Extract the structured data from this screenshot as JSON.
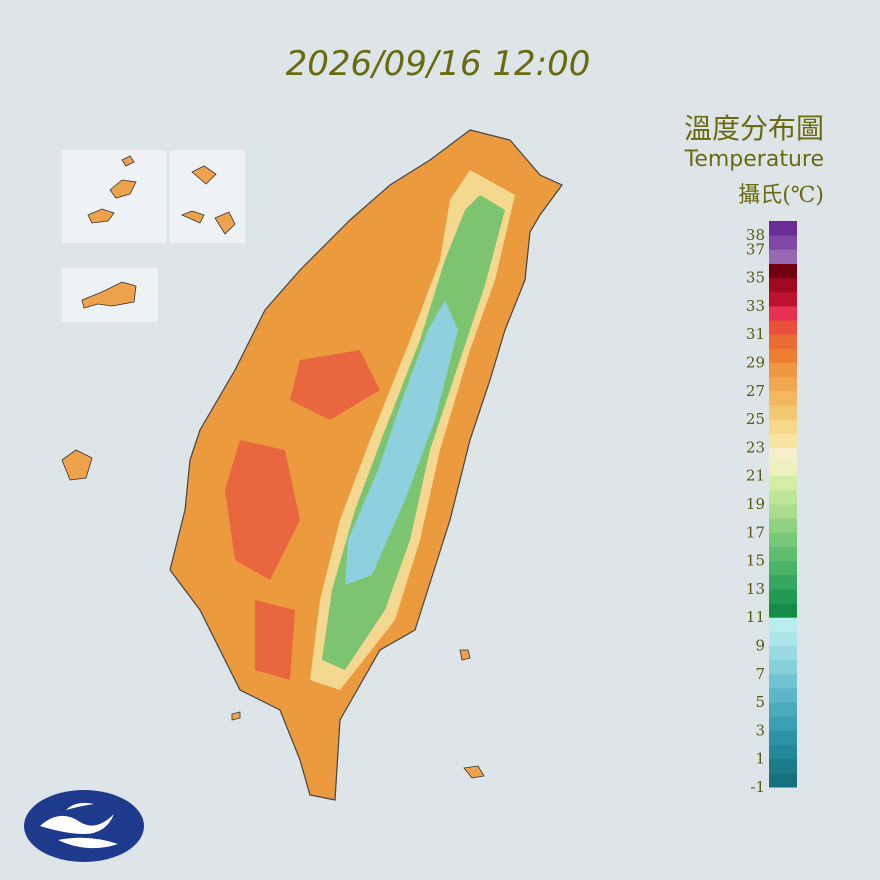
{
  "header": {
    "timestamp": "2026/09/16 12:00"
  },
  "legend": {
    "title": "溫度分布圖",
    "subtitle": "Temperature",
    "unit": "攝氏(℃)",
    "ylim": [
      -1,
      39
    ],
    "ticks": [
      38,
      37,
      35,
      33,
      31,
      29,
      27,
      25,
      23,
      21,
      19,
      17,
      15,
      13,
      11,
      9,
      7,
      5,
      3,
      1,
      -1
    ],
    "colors": [
      "#17707f",
      "#1b7c8a",
      "#23889a",
      "#2c93a6",
      "#3a9fb2",
      "#4aabbd",
      "#5cb7c8",
      "#70c3d2",
      "#86cfdb",
      "#9adbe3",
      "#ace5ea",
      "#b8eef0",
      "#138c48",
      "#229a52",
      "#36a75c",
      "#4ab366",
      "#60be70",
      "#78c87a",
      "#90d284",
      "#a8dc8e",
      "#bee698",
      "#d2eea2",
      "#eef0c0",
      "#f6eec8",
      "#f8e4a0",
      "#f6d888",
      "#f4c870",
      "#f2b860",
      "#f0a850",
      "#ee9840",
      "#ec8030",
      "#ea6c34",
      "#e8503c",
      "#e83050",
      "#c01030",
      "#a00820",
      "#700010",
      "#9868b0",
      "#8048a8",
      "#6c2c98"
    ]
  }
}
